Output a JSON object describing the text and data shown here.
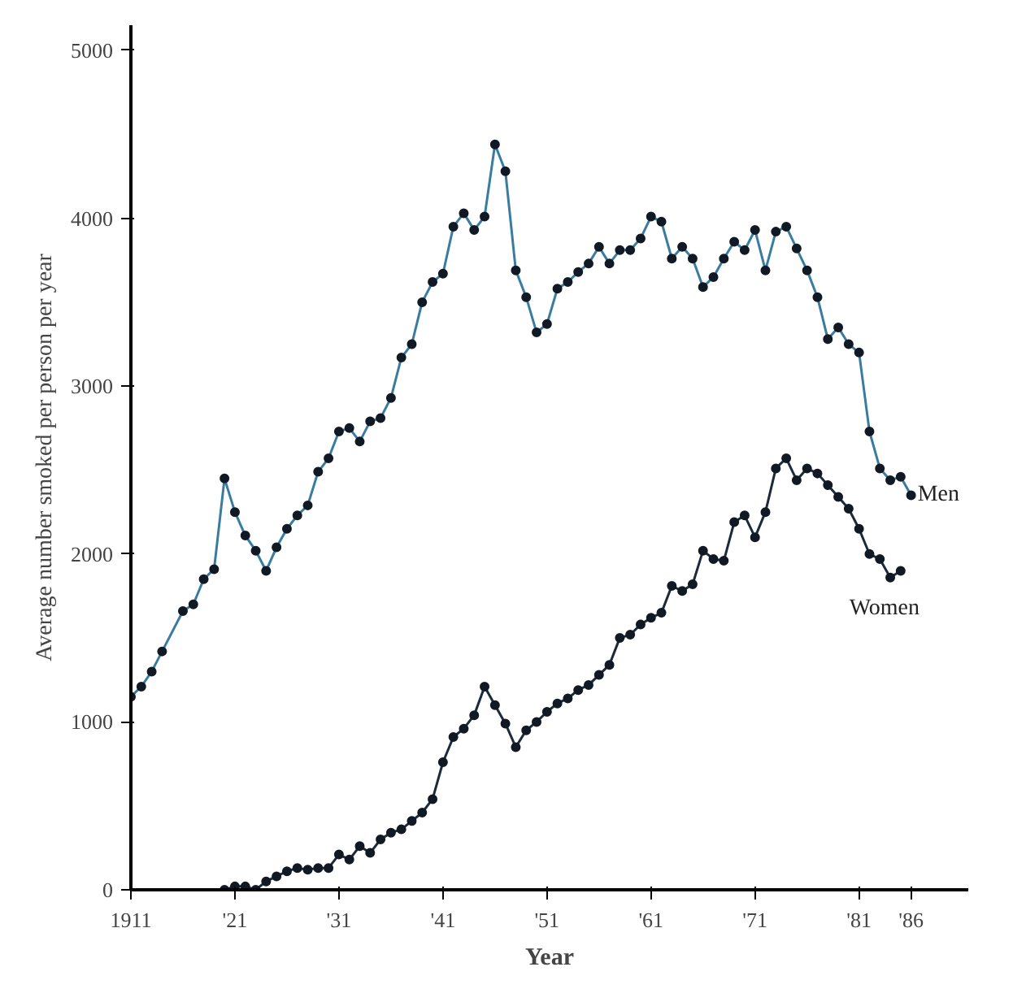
{
  "chart_data": {
    "type": "line",
    "xlabel": "Year",
    "ylabel": "Average number smoked per person per year",
    "xlim": [
      1911,
      1991.5
    ],
    "ylim": [
      0,
      5150
    ],
    "xticks": [
      1911,
      {
        "value": 1921,
        "label": "'21"
      },
      {
        "value": 1931,
        "label": "'31"
      },
      {
        "value": 1941,
        "label": "'41"
      },
      {
        "value": 1951,
        "label": "'51"
      },
      {
        "value": 1961,
        "label": "'61"
      },
      {
        "value": 1971,
        "label": "'71"
      },
      {
        "value": 1981,
        "label": "'81"
      },
      {
        "value": 1986,
        "label": "'86"
      }
    ],
    "yticks": [
      0,
      1000,
      2000,
      3000,
      4000,
      5000
    ],
    "grid": false,
    "legend": false,
    "marker": "circle",
    "line_style": "solid",
    "series": [
      {
        "name": "Men",
        "color": "#3a7ca0",
        "x": [
          1911,
          1912,
          1913,
          1914,
          1916,
          1917,
          1918,
          1919,
          1920,
          1921,
          1922,
          1923,
          1924,
          1925,
          1926,
          1927,
          1928,
          1929,
          1930,
          1931,
          1932,
          1933,
          1934,
          1935,
          1936,
          1937,
          1938,
          1939,
          1940,
          1941,
          1942,
          1943,
          1944,
          1945,
          1946,
          1947,
          1948,
          1949,
          1950,
          1951,
          1952,
          1953,
          1954,
          1955,
          1956,
          1957,
          1958,
          1959,
          1960,
          1961,
          1962,
          1963,
          1964,
          1965,
          1966,
          1967,
          1968,
          1969,
          1970,
          1971,
          1972,
          1973,
          1974,
          1975,
          1976,
          1977,
          1978,
          1979,
          1980,
          1981,
          1982,
          1983,
          1984,
          1985,
          1986
        ],
        "values": [
          1150,
          1210,
          1300,
          1420,
          1660,
          1700,
          1850,
          1910,
          2450,
          2250,
          2110,
          2020,
          1900,
          2040,
          2150,
          2230,
          2290,
          2490,
          2570,
          2730,
          2750,
          2670,
          2790,
          2810,
          2930,
          3170,
          3250,
          3500,
          3620,
          3670,
          3950,
          4030,
          3930,
          4010,
          4440,
          4280,
          3690,
          3530,
          3320,
          3370,
          3580,
          3620,
          3680,
          3730,
          3830,
          3730,
          3810,
          3810,
          3880,
          4010,
          3980,
          3760,
          3830,
          3760,
          3590,
          3650,
          3760,
          3860,
          3810,
          3930,
          3690,
          3920,
          3950,
          3820,
          3690,
          3530,
          3280,
          3350,
          3250,
          3200,
          2730,
          2510,
          2440,
          2460,
          2350
        ]
      },
      {
        "name": "Women",
        "color": "#1c2b3c",
        "x": [
          1920,
          1921,
          1922,
          1923,
          1924,
          1925,
          1926,
          1927,
          1928,
          1929,
          1930,
          1931,
          1932,
          1933,
          1934,
          1935,
          1936,
          1937,
          1938,
          1939,
          1940,
          1941,
          1942,
          1943,
          1944,
          1945,
          1946,
          1947,
          1948,
          1949,
          1950,
          1951,
          1952,
          1953,
          1954,
          1955,
          1956,
          1957,
          1958,
          1959,
          1960,
          1961,
          1962,
          1963,
          1964,
          1965,
          1966,
          1967,
          1968,
          1969,
          1970,
          1971,
          1972,
          1973,
          1974,
          1975,
          1976,
          1977,
          1978,
          1979,
          1980,
          1981,
          1982,
          1983,
          1984,
          1985
        ],
        "values": [
          0,
          20,
          20,
          0,
          50,
          80,
          110,
          130,
          120,
          130,
          130,
          210,
          180,
          260,
          220,
          300,
          340,
          360,
          410,
          460,
          540,
          760,
          910,
          960,
          1040,
          1210,
          1100,
          990,
          850,
          950,
          1000,
          1060,
          1110,
          1140,
          1190,
          1220,
          1280,
          1340,
          1500,
          1520,
          1580,
          1620,
          1650,
          1810,
          1780,
          1820,
          2020,
          1970,
          1960,
          2190,
          2230,
          2100,
          2250,
          2510,
          2570,
          2440,
          2510,
          2480,
          2410,
          2340,
          2270,
          2150,
          2000,
          1970,
          1860,
          1900
        ]
      }
    ]
  }
}
